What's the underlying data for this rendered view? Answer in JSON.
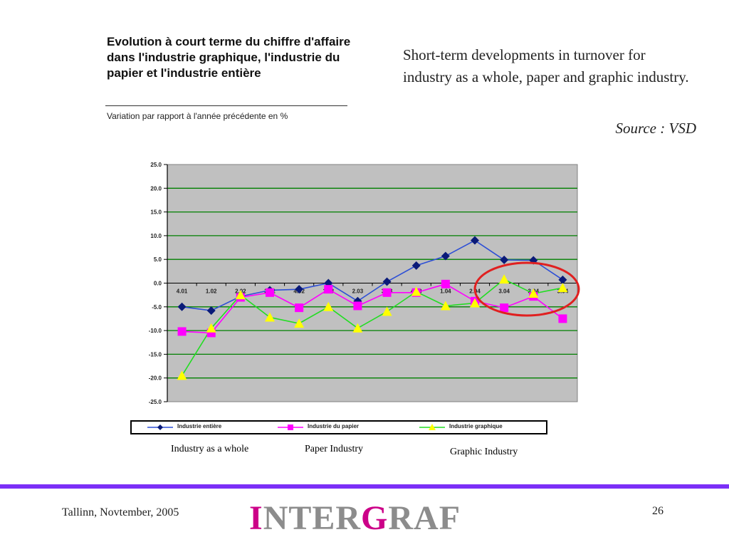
{
  "header": {
    "fr_title": "Evolution à court terme du chiffre d'affaire dans l'industrie graphique, l'industrie du papier et l'industrie entière",
    "fr_subtitle": "Variation par rapport à l'année précédente en %",
    "en_title": "Short-term developments in turnover for industry as a whole, paper and graphic industry.",
    "source": "Source : VSD"
  },
  "chart_data": {
    "type": "line",
    "categories": [
      "4.01",
      "1.02",
      "2.02",
      "3.02",
      "4.02",
      "1.03",
      "2.03",
      "3.03",
      "4.03",
      "1.04",
      "2.04",
      "3.04",
      "3.04",
      "3.04"
    ],
    "ylim": [
      -25,
      25
    ],
    "yticks": [
      "25.0",
      "20.0",
      "15.0",
      "10.0",
      "5.0",
      "0.0",
      "-5.0",
      "-10.0",
      "-15.0",
      "-20.0",
      "-25.0"
    ],
    "grid": true,
    "legend_position": "bottom",
    "series": [
      {
        "name": "Industrie entière",
        "color": "#2d4fd6",
        "marker": "diamond",
        "marker_color": "#0a1a78",
        "values": [
          -5.0,
          -5.8,
          -2.8,
          -1.5,
          -1.3,
          0.0,
          -3.8,
          0.3,
          3.7,
          5.7,
          9.0,
          4.9,
          4.8,
          0.7
        ]
      },
      {
        "name": "Industrie du papier",
        "color": "#ff00ff",
        "marker": "square",
        "marker_color": "#ff00ff",
        "values": [
          -10.2,
          -10.5,
          -3.0,
          -2.0,
          -5.2,
          -1.3,
          -4.8,
          -2.0,
          -2.0,
          -0.2,
          -3.8,
          -5.2,
          -2.8,
          -7.5
        ]
      },
      {
        "name": "Industrie graphique",
        "color": "#22dd22",
        "marker": "triangle",
        "marker_color": "#ffff00",
        "values": [
          -19.5,
          -9.5,
          -2.5,
          -7.2,
          -8.5,
          -5.0,
          -9.5,
          -6.0,
          -1.8,
          -4.8,
          -4.2,
          0.8,
          -2.2,
          -1.0
        ]
      }
    ]
  },
  "captions": {
    "industry": "Industry as a whole",
    "paper": "Paper Industry",
    "graphic": "Graphic Industry"
  },
  "footer": {
    "location": "Tallinn, Novtember, 2005",
    "logo_i": "I",
    "logo_nter": "NTER",
    "logo_g": "G",
    "logo_raf": "RAF",
    "page_number": "26"
  }
}
